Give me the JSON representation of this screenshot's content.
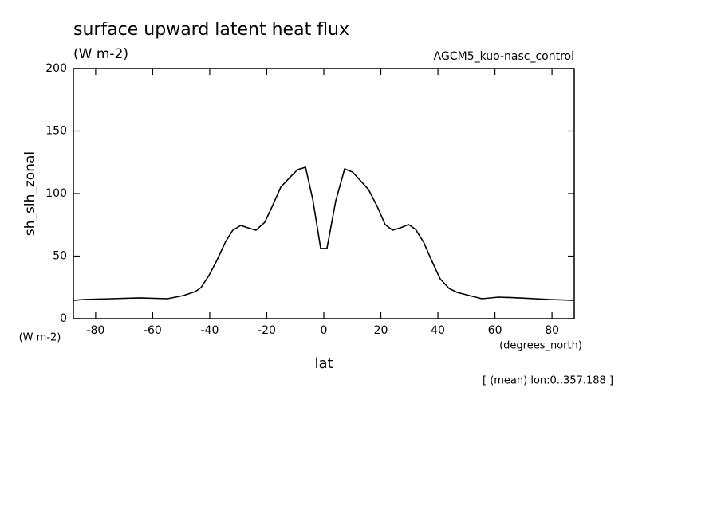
{
  "chart_data": {
    "type": "line",
    "title": "surface upward latent heat flux",
    "subtitle": "(W m-2)",
    "experiment": "AGCM5_kuo-nasc_control",
    "y_label": "sh_slh_zonal",
    "y_units": "(W m-2)",
    "x_units": "(degrees_north)",
    "x_label": "lat",
    "note": "[ (mean) lon:0..357.188 ]",
    "x": [
      -87.8,
      -84.2,
      -74.4,
      -64.6,
      -54.8,
      -49.2,
      -45.0,
      -43.1,
      -40.3,
      -37.5,
      -34.4,
      -31.9,
      -29.1,
      -26.6,
      -23.8,
      -20.7,
      -18.2,
      -15.1,
      -12.0,
      -9.2,
      -6.4,
      -3.9,
      -1.1,
      1.1,
      4.2,
      7.3,
      10.1,
      15.7,
      18.7,
      21.5,
      24.1,
      26.9,
      29.7,
      32.2,
      35.0,
      37.8,
      40.8,
      43.9,
      46.7,
      55.4,
      61.3,
      68.3,
      79.4,
      87.8
    ],
    "series": [
      {
        "color": "#000000",
        "values": [
          14.6,
          15.3,
          15.9,
          16.6,
          15.9,
          18.5,
          21.7,
          24.8,
          34.4,
          46.5,
          61.8,
          70.7,
          74.5,
          72.6,
          70.7,
          77.1,
          89.2,
          105.1,
          112.7,
          119.1,
          121.0,
          95.5,
          56.1,
          56.1,
          94.3,
          119.7,
          117.2,
          103.2,
          89.8,
          75.2,
          70.7,
          72.6,
          75.2,
          71.3,
          61.1,
          46.5,
          31.8,
          24.2,
          21.0,
          15.9,
          17.2,
          16.6,
          15.3,
          14.6
        ]
      }
    ],
    "xlim": [
      -87.8,
      87.8
    ],
    "ylim": [
      0,
      200
    ],
    "xticks": [
      -80,
      -60,
      -40,
      -20,
      0,
      20,
      40,
      60,
      80
    ],
    "yticks": [
      0,
      50,
      100,
      150,
      200
    ]
  }
}
